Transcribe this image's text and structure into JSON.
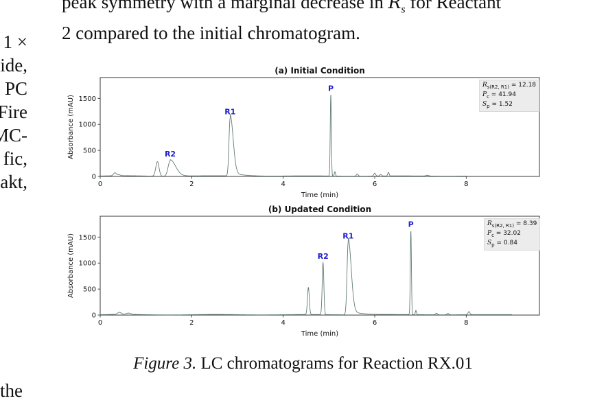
{
  "top_text": {
    "line1_before": "peak symmetry with a marginal decrease in ",
    "line1_math_var": "R",
    "line1_math_sub": "s",
    "line1_after": " for Reactant",
    "line2": "2 compared to the initial chromatogram."
  },
  "left_column": [
    "1 ×",
    "ide,",
    "PC",
    "Fire",
    "MC-",
    "fic,",
    "akt,"
  ],
  "tail_text": "the",
  "caption": {
    "label": "Figure 3.",
    "text": "LC chromatograms for Reaction RX.01"
  },
  "colors": {
    "trace": "#5f7a72",
    "peak_label": "#1f1fd0",
    "box_bg": "#ececec"
  },
  "chart_data": [
    {
      "type": "line",
      "title": "(a) Initial Condition",
      "xlabel": "Time (min)",
      "ylabel": "Absorbance (mAU)",
      "xlim": [
        0,
        9.6
      ],
      "ylim": [
        0,
        1900
      ],
      "xticks": [
        0,
        2,
        4,
        6,
        8
      ],
      "yticks": [
        0,
        500,
        1000,
        1500
      ],
      "x_end": 8.0,
      "peaks": [
        {
          "t": 0.32,
          "h": 55,
          "w": 0.03
        },
        {
          "t": 0.4,
          "h": 20,
          "w": 0.04
        },
        {
          "t": 1.25,
          "h": 280,
          "w": 0.035
        },
        {
          "t": 1.53,
          "h": 300,
          "w": 0.045,
          "tail": 1
        },
        {
          "t": 2.84,
          "h": 1110,
          "w": 0.025,
          "tail": 1
        },
        {
          "t": 5.04,
          "h": 1560,
          "w": 0.012
        },
        {
          "t": 5.13,
          "h": 85,
          "w": 0.012
        },
        {
          "t": 5.62,
          "h": 40,
          "w": 0.02
        },
        {
          "t": 6.0,
          "h": 55,
          "w": 0.02
        },
        {
          "t": 6.13,
          "h": 30,
          "w": 0.02
        },
        {
          "t": 6.3,
          "h": 70,
          "w": 0.015
        },
        {
          "t": 7.15,
          "h": 15,
          "w": 0.03
        }
      ],
      "labels": [
        {
          "text": "R2",
          "x": 1.53,
          "y": 330
        },
        {
          "text": "R1",
          "x": 2.84,
          "y": 1140
        },
        {
          "text": "P",
          "x": 5.04,
          "y": 1590
        }
      ],
      "stats": {
        "Rs_sub": "s(R2, R1)",
        "Rs": "12.18",
        "Pc": "41.94",
        "Sp": "1.52"
      }
    },
    {
      "type": "line",
      "title": "(b) Updated Condition",
      "xlabel": "Time (min)",
      "ylabel": "Absorbance (mAU)",
      "xlim": [
        0,
        9.6
      ],
      "ylim": [
        0,
        1900
      ],
      "xticks": [
        0,
        2,
        4,
        6,
        8
      ],
      "yticks": [
        0,
        500,
        1000,
        1500
      ],
      "x_end": 9.0,
      "peaks": [
        {
          "t": 0.42,
          "h": 40,
          "w": 0.04
        },
        {
          "t": 0.62,
          "h": 25,
          "w": 0.05
        },
        {
          "t": 4.55,
          "h": 520,
          "w": 0.02
        },
        {
          "t": 4.87,
          "h": 1000,
          "w": 0.018
        },
        {
          "t": 5.42,
          "h": 1390,
          "w": 0.025,
          "tail": 1
        },
        {
          "t": 6.79,
          "h": 1610,
          "w": 0.012
        },
        {
          "t": 6.9,
          "h": 80,
          "w": 0.012
        },
        {
          "t": 7.35,
          "h": 30,
          "w": 0.02
        },
        {
          "t": 7.6,
          "h": 25,
          "w": 0.02
        },
        {
          "t": 8.06,
          "h": 60,
          "w": 0.02
        }
      ],
      "labels": [
        {
          "text": "R2",
          "x": 4.87,
          "y": 1030
        },
        {
          "text": "R1",
          "x": 5.42,
          "y": 1420
        },
        {
          "text": "P",
          "x": 6.79,
          "y": 1640
        }
      ],
      "stats": {
        "Rs_sub": "s(R2, R1)",
        "Rs": "8.39",
        "Pc": "32.02",
        "Sp": "0.84"
      }
    }
  ]
}
